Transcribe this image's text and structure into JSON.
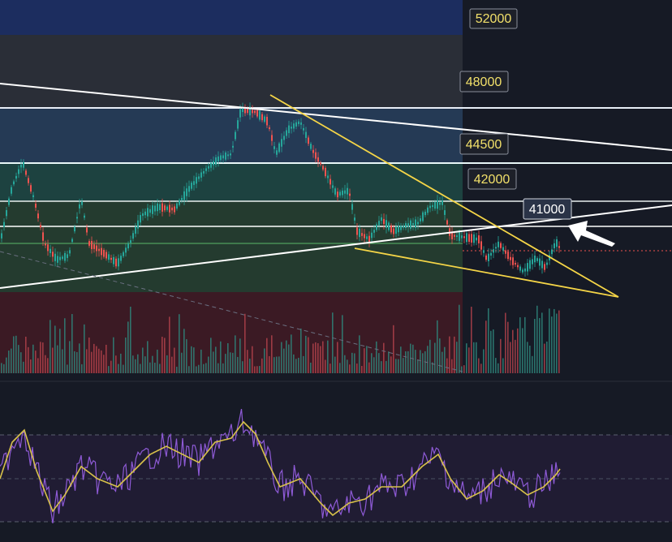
{
  "chart_data": {
    "type": "candlestick",
    "panels": [
      "price",
      "volume",
      "oscillator"
    ],
    "price_levels": [
      52000,
      48000,
      44500,
      42000,
      41000
    ],
    "highlighted_level": 41000,
    "zones": [
      {
        "from": 48000,
        "to": 52000,
        "color": "#2c3138"
      },
      {
        "from": 44500,
        "to": 48000,
        "color": "#2a3c55"
      },
      {
        "from": 42000,
        "to": 44500,
        "color": "#1b3f3c"
      },
      {
        "from": 38000,
        "to": 42000,
        "color": "#233a2e"
      }
    ],
    "colors": {
      "background": "#161a25",
      "bull": "#26a69a",
      "bear": "#ef5350",
      "trendline": "#ffffff",
      "wedge": "#f5d547",
      "oscillator": "#8e5ad6",
      "signal": "#d8c24a",
      "label_text": "#f2e06a",
      "level_41000_text": "#ffffff"
    },
    "drawings": [
      "rising trendline",
      "falling wedge (yellow)",
      "long descending trendline",
      "arrow pointing to 41000"
    ]
  }
}
